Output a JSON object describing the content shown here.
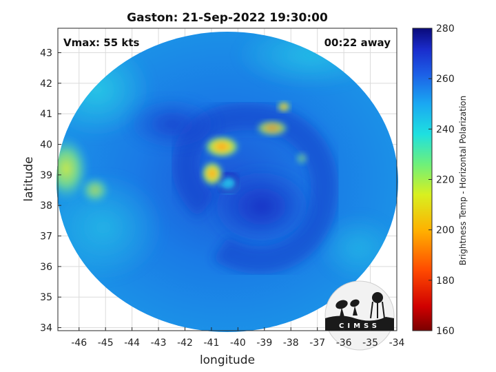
{
  "title": "Gaston: 21-Sep-2022 19:30:00",
  "xlabel": "longitude",
  "ylabel": "latitude",
  "vmax_label": "Vmax: 55 kts",
  "away_label": "00:22 away",
  "colorbar": {
    "label": "Brightness Temp - Horizontal Polarization",
    "ticks": [
      "160",
      "180",
      "200",
      "220",
      "240",
      "260",
      "280"
    ],
    "range": [
      160,
      280
    ]
  },
  "xticks": [
    "-46",
    "-45",
    "-44",
    "-43",
    "-42",
    "-41",
    "-40",
    "-39",
    "-38",
    "-37",
    "-36",
    "-35",
    "-34"
  ],
  "yticks": [
    "34",
    "35",
    "36",
    "37",
    "38",
    "39",
    "40",
    "41",
    "42",
    "43"
  ],
  "logo_text": "CIMSS",
  "colors": {
    "swath_base": "#1e8ae0",
    "cold_core": "#1a3fc4",
    "warm_band": "#f5d12a",
    "frame": "#262626",
    "grid": "#dadada"
  },
  "map": {
    "lon_range": [
      -46.8,
      -34
    ],
    "lat_range": [
      33.9,
      43.8
    ],
    "center": [
      -40.3,
      38.9
    ]
  }
}
